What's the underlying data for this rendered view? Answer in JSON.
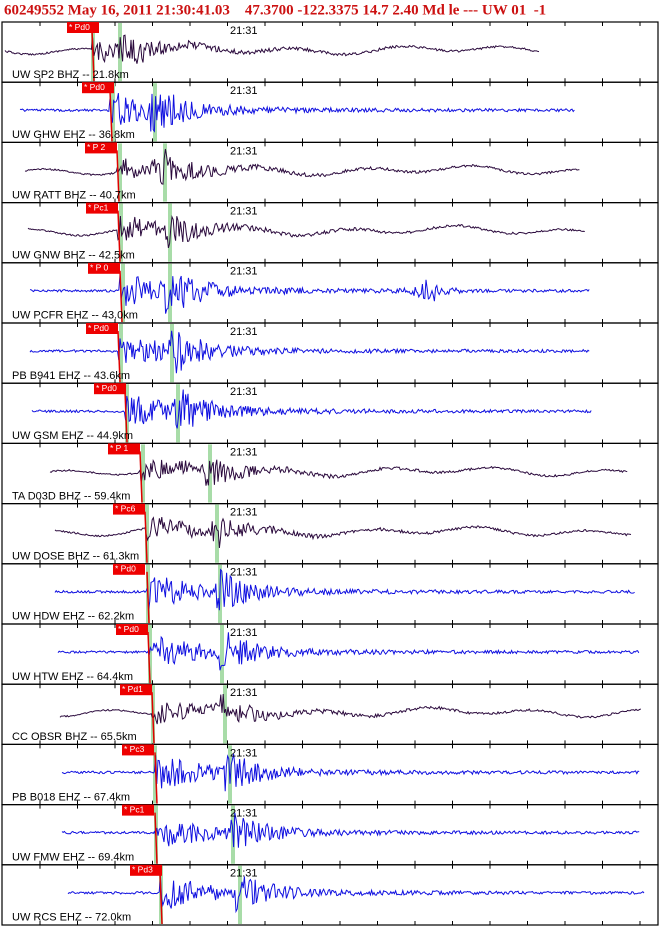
{
  "header": {
    "title": "60249552 May 16, 2011 21:30:41.03    47.3700 -122.3375 14.7 2.40 Md le --- UW 01  -1"
  },
  "traces": [
    {
      "label": "UW SP2 BHZ -- 21.8km",
      "pick": "* Pd0",
      "time": "21:31"
    },
    {
      "label": "UW GHW EHZ -- 36.8km",
      "pick": "* Pd0",
      "time": "21:31"
    },
    {
      "label": "UW RATT BHZ -- 40.7km",
      "pick": "* P 2",
      "time": "21:31"
    },
    {
      "label": "UW GNW BHZ -- 42.5km",
      "pick": "* Pc1",
      "time": "21:31"
    },
    {
      "label": "UW PCFR EHZ -- 43.0km",
      "pick": "* P 0",
      "time": "21:31"
    },
    {
      "label": "PB B941 EHZ -- 43.6km",
      "pick": "* Pd0",
      "time": "21:31"
    },
    {
      "label": "UW GSM EHZ -- 44.9km",
      "pick": "* Pd0",
      "time": "21:31"
    },
    {
      "label": "TA D03D BHZ -- 59.4km",
      "pick": "* P 1",
      "time": "21:31"
    },
    {
      "label": "UW DOSE BHZ -- 61.3km",
      "pick": "* Pc6",
      "time": "21:31"
    },
    {
      "label": "UW HDW EHZ -- 62.2km",
      "pick": "* Pd0",
      "time": "21:31"
    },
    {
      "label": "UW HTW EHZ -- 64.4km",
      "pick": "* Pd0",
      "time": "21:31"
    },
    {
      "label": "CC OBSR BHZ -- 65.5km",
      "pick": "* Pd1",
      "time": "21:31"
    },
    {
      "label": "PB B018 EHZ -- 67.4km",
      "pick": "* Pc3",
      "time": "21:31"
    },
    {
      "label": "UW FMW EHZ -- 69.4km",
      "pick": "* Pc1",
      "time": "21:31"
    },
    {
      "label": "UW RCS EHZ -- 72.0km",
      "pick": "* Pd3",
      "time": "21:31"
    }
  ]
}
